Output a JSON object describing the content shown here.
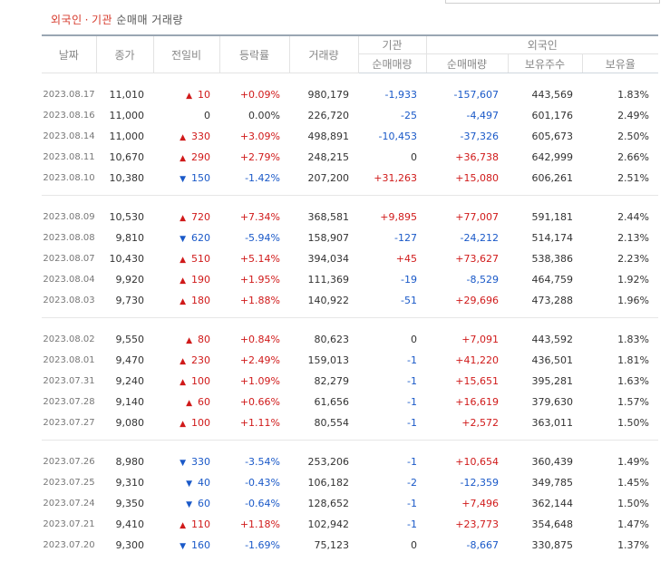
{
  "title": {
    "part1": "외국인",
    "separator": "·",
    "part2": "기관",
    "part3": "순매매 거래량"
  },
  "headers": {
    "date": "날짜",
    "close": "종가",
    "change": "전일비",
    "rate": "등락률",
    "volume": "거래량",
    "institution": "기관",
    "foreigner": "외국인",
    "inst_net": "순매매량",
    "for_net": "순매매량",
    "for_shares": "보유주수",
    "for_ratio": "보유율"
  },
  "groups": [
    [
      {
        "date": "2023.08.17",
        "close": "11,010",
        "dir": "up",
        "change": "10",
        "rate": "+0.09%",
        "volume": "980,179",
        "inst": "-1,933",
        "foreign": "-157,607",
        "shares": "443,569",
        "ratio": "1.83%"
      },
      {
        "date": "2023.08.16",
        "close": "11,000",
        "dir": "none",
        "change": "0",
        "rate": "0.00%",
        "volume": "226,720",
        "inst": "-25",
        "foreign": "-4,497",
        "shares": "601,176",
        "ratio": "2.49%"
      },
      {
        "date": "2023.08.14",
        "close": "11,000",
        "dir": "up",
        "change": "330",
        "rate": "+3.09%",
        "volume": "498,891",
        "inst": "-10,453",
        "foreign": "-37,326",
        "shares": "605,673",
        "ratio": "2.50%"
      },
      {
        "date": "2023.08.11",
        "close": "10,670",
        "dir": "up",
        "change": "290",
        "rate": "+2.79%",
        "volume": "248,215",
        "inst": "0",
        "foreign": "+36,738",
        "shares": "642,999",
        "ratio": "2.66%"
      },
      {
        "date": "2023.08.10",
        "close": "10,380",
        "dir": "down",
        "change": "150",
        "rate": "-1.42%",
        "volume": "207,200",
        "inst": "+31,263",
        "foreign": "+15,080",
        "shares": "606,261",
        "ratio": "2.51%"
      }
    ],
    [
      {
        "date": "2023.08.09",
        "close": "10,530",
        "dir": "up",
        "change": "720",
        "rate": "+7.34%",
        "volume": "368,581",
        "inst": "+9,895",
        "foreign": "+77,007",
        "shares": "591,181",
        "ratio": "2.44%"
      },
      {
        "date": "2023.08.08",
        "close": "9,810",
        "dir": "down",
        "change": "620",
        "rate": "-5.94%",
        "volume": "158,907",
        "inst": "-127",
        "foreign": "-24,212",
        "shares": "514,174",
        "ratio": "2.13%"
      },
      {
        "date": "2023.08.07",
        "close": "10,430",
        "dir": "up",
        "change": "510",
        "rate": "+5.14%",
        "volume": "394,034",
        "inst": "+45",
        "foreign": "+73,627",
        "shares": "538,386",
        "ratio": "2.23%"
      },
      {
        "date": "2023.08.04",
        "close": "9,920",
        "dir": "up",
        "change": "190",
        "rate": "+1.95%",
        "volume": "111,369",
        "inst": "-19",
        "foreign": "-8,529",
        "shares": "464,759",
        "ratio": "1.92%"
      },
      {
        "date": "2023.08.03",
        "close": "9,730",
        "dir": "up",
        "change": "180",
        "rate": "+1.88%",
        "volume": "140,922",
        "inst": "-51",
        "foreign": "+29,696",
        "shares": "473,288",
        "ratio": "1.96%"
      }
    ],
    [
      {
        "date": "2023.08.02",
        "close": "9,550",
        "dir": "up",
        "change": "80",
        "rate": "+0.84%",
        "volume": "80,623",
        "inst": "0",
        "foreign": "+7,091",
        "shares": "443,592",
        "ratio": "1.83%"
      },
      {
        "date": "2023.08.01",
        "close": "9,470",
        "dir": "up",
        "change": "230",
        "rate": "+2.49%",
        "volume": "159,013",
        "inst": "-1",
        "foreign": "+41,220",
        "shares": "436,501",
        "ratio": "1.81%"
      },
      {
        "date": "2023.07.31",
        "close": "9,240",
        "dir": "up",
        "change": "100",
        "rate": "+1.09%",
        "volume": "82,279",
        "inst": "-1",
        "foreign": "+15,651",
        "shares": "395,281",
        "ratio": "1.63%"
      },
      {
        "date": "2023.07.28",
        "close": "9,140",
        "dir": "up",
        "change": "60",
        "rate": "+0.66%",
        "volume": "61,656",
        "inst": "-1",
        "foreign": "+16,619",
        "shares": "379,630",
        "ratio": "1.57%"
      },
      {
        "date": "2023.07.27",
        "close": "9,080",
        "dir": "up",
        "change": "100",
        "rate": "+1.11%",
        "volume": "80,554",
        "inst": "-1",
        "foreign": "+2,572",
        "shares": "363,011",
        "ratio": "1.50%"
      }
    ],
    [
      {
        "date": "2023.07.26",
        "close": "8,980",
        "dir": "down",
        "change": "330",
        "rate": "-3.54%",
        "volume": "253,206",
        "inst": "-1",
        "foreign": "+10,654",
        "shares": "360,439",
        "ratio": "1.49%"
      },
      {
        "date": "2023.07.25",
        "close": "9,310",
        "dir": "down",
        "change": "40",
        "rate": "-0.43%",
        "volume": "106,182",
        "inst": "-2",
        "foreign": "-12,359",
        "shares": "349,785",
        "ratio": "1.45%"
      },
      {
        "date": "2023.07.24",
        "close": "9,350",
        "dir": "down",
        "change": "60",
        "rate": "-0.64%",
        "volume": "128,652",
        "inst": "-1",
        "foreign": "+7,496",
        "shares": "362,144",
        "ratio": "1.50%"
      },
      {
        "date": "2023.07.21",
        "close": "9,410",
        "dir": "up",
        "change": "110",
        "rate": "+1.18%",
        "volume": "102,942",
        "inst": "-1",
        "foreign": "+23,773",
        "shares": "354,648",
        "ratio": "1.47%"
      },
      {
        "date": "2023.07.20",
        "close": "9,300",
        "dir": "down",
        "change": "160",
        "rate": "-1.69%",
        "volume": "75,123",
        "inst": "0",
        "foreign": "-8,667",
        "shares": "330,875",
        "ratio": "1.37%"
      }
    ]
  ],
  "colors": {
    "up": "#d01a1a",
    "down": "#1a59c8",
    "title_accent": "#d63a2c"
  },
  "icons": {
    "up": "▲",
    "down": "▼"
  }
}
